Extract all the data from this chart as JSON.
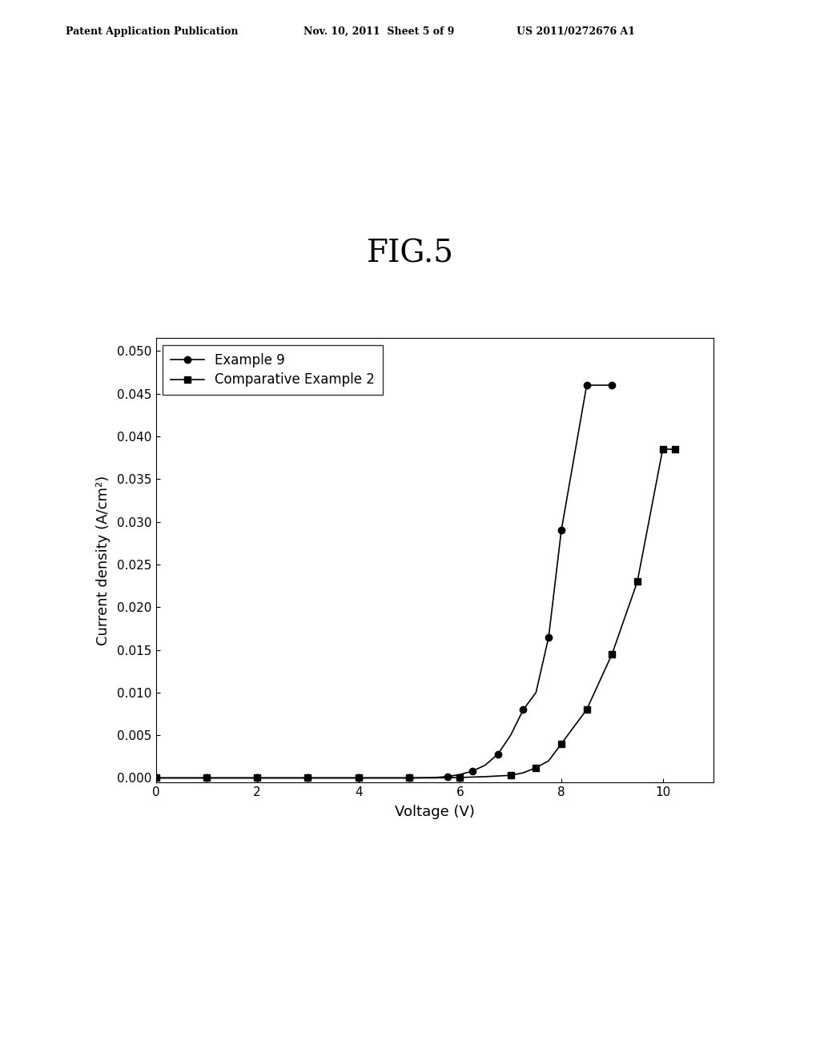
{
  "fig_label": "FIG.5",
  "header_left": "Patent Application Publication",
  "header_mid": "Nov. 10, 2011  Sheet 5 of 9",
  "header_right": "US 2011/0272676 A1",
  "xlabel": "Voltage (V)",
  "ylabel": "Current density (A/cm²)",
  "xlim": [
    0,
    11
  ],
  "ylim": [
    -0.0005,
    0.0515
  ],
  "xticks": [
    0,
    2,
    4,
    6,
    8,
    10
  ],
  "yticks": [
    0.0,
    0.005,
    0.01,
    0.015,
    0.02,
    0.025,
    0.03,
    0.035,
    0.04,
    0.045,
    0.05
  ],
  "series1_label": "Example 9",
  "series1_x": [
    0,
    0.5,
    1,
    1.5,
    2,
    2.5,
    3,
    3.5,
    4,
    4.5,
    5,
    5.5,
    5.75,
    6.0,
    6.25,
    6.5,
    6.75,
    7.0,
    7.25,
    7.5,
    7.75,
    8.0,
    8.5,
    9.0
  ],
  "series1_y": [
    0.0,
    0.0,
    0.0,
    0.0,
    0.0,
    0.0,
    0.0,
    0.0,
    0.0,
    0.0,
    0.0,
    5e-05,
    0.00015,
    0.0004,
    0.0008,
    0.0015,
    0.0028,
    0.005,
    0.008,
    0.01,
    0.0165,
    0.029,
    0.046,
    0.046
  ],
  "series1_marker_x": [
    0,
    1,
    2,
    3,
    4,
    5,
    5.75,
    6.25,
    6.75,
    7.25,
    7.75,
    8.0,
    8.5,
    9.0
  ],
  "series1_marker_y": [
    0.0,
    0.0,
    0.0,
    0.0,
    0.0,
    0.0,
    0.00015,
    0.0008,
    0.0028,
    0.008,
    0.0165,
    0.029,
    0.046,
    0.046
  ],
  "series2_label": "Comparative Example 2",
  "series2_x": [
    0,
    0.5,
    1,
    1.5,
    2,
    2.5,
    3,
    3.5,
    4,
    4.5,
    5,
    5.5,
    6,
    6.5,
    7,
    7.25,
    7.5,
    7.75,
    8.0,
    8.5,
    9.0,
    9.5,
    10.0,
    10.25
  ],
  "series2_y": [
    0.0,
    0.0,
    0.0,
    0.0,
    0.0,
    0.0,
    0.0,
    0.0,
    0.0,
    0.0,
    0.0,
    0.0,
    5e-05,
    0.00015,
    0.0003,
    0.0006,
    0.0012,
    0.002,
    0.004,
    0.008,
    0.0145,
    0.023,
    0.0385,
    0.0385
  ],
  "series2_marker_x": [
    0,
    1,
    2,
    3,
    4,
    5,
    6,
    7,
    7.5,
    8.0,
    8.5,
    9.0,
    9.5,
    10.0,
    10.25
  ],
  "series2_marker_y": [
    0.0,
    0.0,
    0.0,
    0.0,
    0.0,
    0.0,
    5e-05,
    0.0003,
    0.0012,
    0.004,
    0.008,
    0.0145,
    0.023,
    0.0385,
    0.0385
  ],
  "line_color": "#000000",
  "background_color": "#ffffff",
  "fig_label_fontsize": 28,
  "axis_label_fontsize": 13,
  "tick_fontsize": 11,
  "legend_fontsize": 12
}
